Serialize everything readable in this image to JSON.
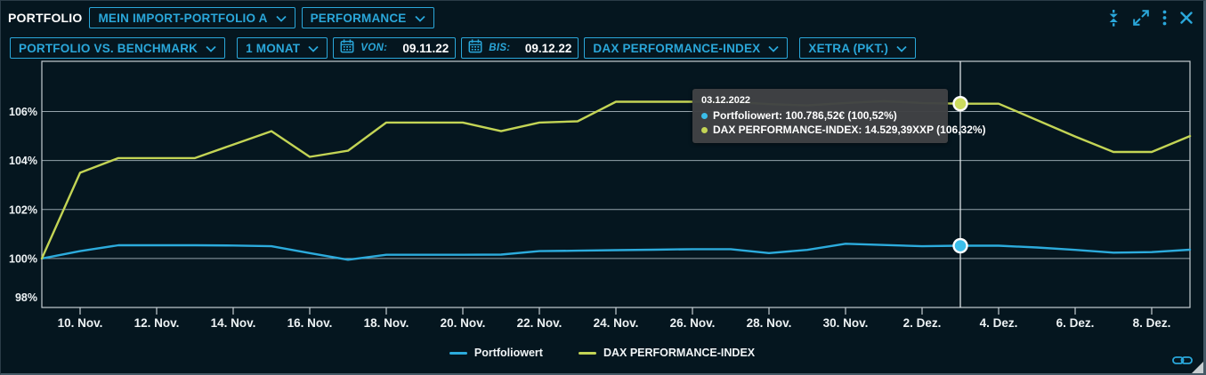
{
  "header": {
    "title": "PORTFOLIO",
    "portfolio_select": "MEIN IMPORT-PORTFOLIO A",
    "view_select": "PERFORMANCE",
    "icons": [
      "collapse-vertical-icon",
      "expand-icon",
      "kebab-menu-icon",
      "close-icon"
    ]
  },
  "toolbar": {
    "mode_select": "PORTFOLIO VS. BENCHMARK",
    "range_select": "1 MONAT",
    "from_label": "VON:",
    "from_value": "09.11.22",
    "to_label": "BIS:",
    "to_value": "09.12.22",
    "benchmark_select": "DAX PERFORMANCE-INDEX",
    "exchange_select": "XETRA (PKT.)",
    "calendar_icon": "calendar-icon"
  },
  "colors": {
    "accent_cyan": "#2aa7da",
    "portfolio_line": "#2cabdc",
    "dax_line": "#c3d455",
    "background": "#05161f",
    "gridline": "#95a3ab",
    "tooltip_bg": "#404244"
  },
  "tooltip": {
    "date": "03.12.2022",
    "rows": [
      {
        "color": "#3bbde9",
        "text": "Portfoliowert: 100.786,52€ (100,52%)"
      },
      {
        "color": "#c3d455",
        "text": "DAX PERFORMANCE-INDEX: 14.529,39XXP (106,32%)"
      }
    ]
  },
  "chart_data": {
    "type": "line",
    "title": "Portfolio vs. Benchmark Performance",
    "grid": "horizontal",
    "legend_position": "bottom",
    "dates": [
      "09.11.",
      "10.11.",
      "11.11.",
      "12.11.",
      "13.11.",
      "14.11.",
      "15.11.",
      "16.11.",
      "17.11.",
      "18.11.",
      "19.11.",
      "20.11.",
      "21.11.",
      "22.11.",
      "23.11.",
      "24.11.",
      "25.11.",
      "26.11.",
      "27.11.",
      "28.11.",
      "29.11.",
      "30.11.",
      "01.12.",
      "02.12.",
      "03.12.",
      "04.12.",
      "05.12.",
      "06.12.",
      "07.12.",
      "08.12.",
      "09.12."
    ],
    "series": [
      {
        "name": "Portfoliowert",
        "color": "#2cabdc",
        "marker_color": "#3bbde9",
        "values": [
          100.0,
          100.3,
          100.54,
          100.54,
          100.54,
          100.53,
          100.5,
          100.22,
          99.95,
          100.15,
          100.15,
          100.15,
          100.16,
          100.3,
          100.32,
          100.34,
          100.36,
          100.38,
          100.38,
          100.22,
          100.35,
          100.6,
          100.55,
          100.5,
          100.52,
          100.52,
          100.45,
          100.35,
          100.24,
          100.26,
          100.36
        ]
      },
      {
        "name": "DAX PERFORMANCE-INDEX",
        "color": "#c3d455",
        "marker_color": "#ccdb5e",
        "values": [
          100.0,
          103.5,
          104.1,
          104.1,
          104.1,
          104.65,
          105.2,
          104.15,
          104.4,
          105.55,
          105.55,
          105.55,
          105.2,
          105.55,
          105.6,
          106.4,
          106.4,
          106.4,
          106.4,
          106.3,
          106.25,
          106.35,
          106.42,
          106.35,
          106.32,
          106.32,
          105.65,
          104.98,
          104.35,
          104.35,
          105.0
        ]
      }
    ],
    "y_ticks": [
      98,
      100,
      102,
      104,
      106
    ],
    "y_tick_suffix": "%",
    "ylim": [
      98.0,
      108.05
    ],
    "x_tick_indices": [
      1,
      3,
      5,
      7,
      9,
      11,
      13,
      15,
      17,
      19,
      21,
      23,
      25,
      27,
      29
    ],
    "x_tick_labels": [
      "10. Nov.",
      "12. Nov.",
      "14. Nov.",
      "16. Nov.",
      "18. Nov.",
      "20. Nov.",
      "22. Nov.",
      "24. Nov.",
      "26. Nov.",
      "28. Nov.",
      "30. Nov.",
      "2. Dez.",
      "4. Dez.",
      "6. Dez.",
      "8. Dez."
    ],
    "crosshair": {
      "index": 24,
      "date": "03.12.2022"
    }
  },
  "legend": [
    {
      "label": "Portfoliowert"
    },
    {
      "label": "DAX PERFORMANCE-INDEX"
    }
  ]
}
